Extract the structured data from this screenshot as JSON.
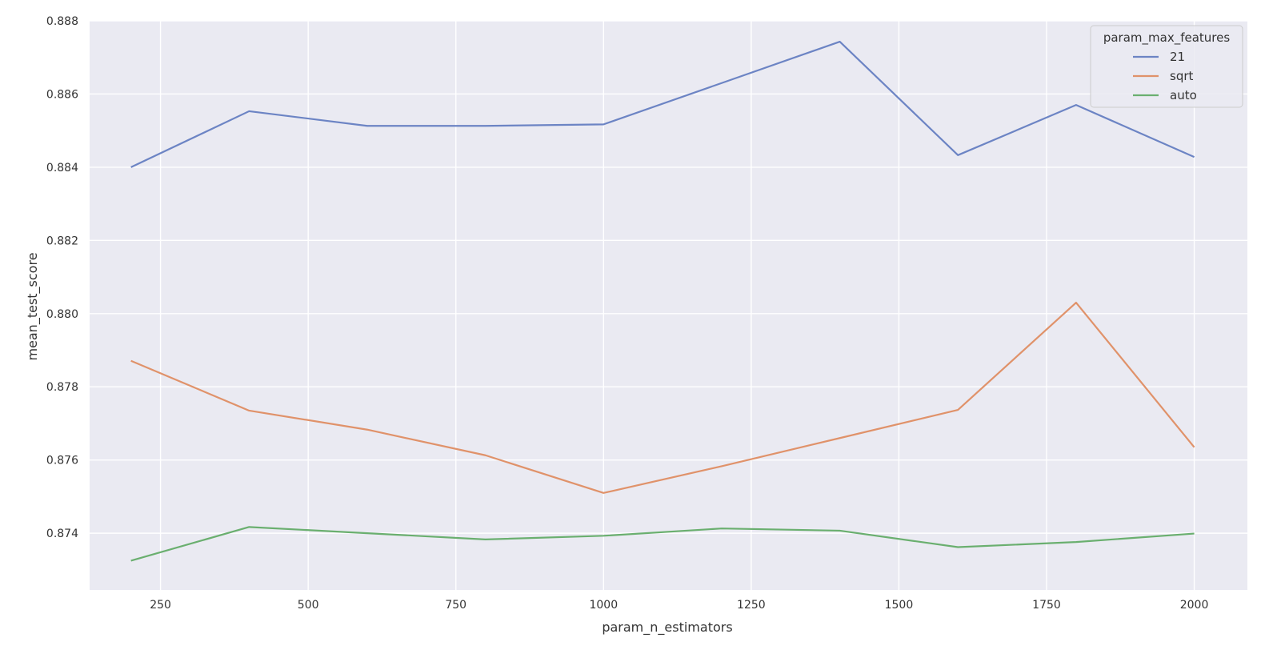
{
  "chart_data": {
    "type": "line",
    "title": "",
    "xlabel": "param_n_estimators",
    "ylabel": "mean_test_score",
    "xlim": [
      130,
      2090
    ],
    "ylim": [
      0.87245,
      0.888
    ],
    "grid": true,
    "legend_placement": "top-right",
    "legend_title": "param_max_features",
    "x": [
      200,
      400,
      600,
      800,
      1000,
      1200,
      1400,
      1600,
      1800,
      2000
    ],
    "x_ticks": [
      250,
      500,
      750,
      1000,
      1250,
      1500,
      1750,
      2000
    ],
    "x_tick_labels": [
      "250",
      "500",
      "750",
      "1000",
      "1250",
      "1500",
      "1750",
      "2000"
    ],
    "y_ticks": [
      0.874,
      0.876,
      0.878,
      0.88,
      0.882,
      0.884,
      0.886,
      0.888
    ],
    "y_tick_labels": [
      "0.874",
      "0.876",
      "0.878",
      "0.880",
      "0.882",
      "0.884",
      "0.886",
      "0.888"
    ],
    "series": [
      {
        "name": "21",
        "color": "#6c84c4",
        "values": [
          0.884,
          0.88553,
          0.88513,
          0.88513,
          0.88517,
          0.8863,
          0.88743,
          0.88433,
          0.8857,
          0.88428
        ]
      },
      {
        "name": "sqrt",
        "color": "#e0926a",
        "values": [
          0.87871,
          0.87735,
          0.87683,
          0.87613,
          0.8751,
          0.87583,
          0.8766,
          0.87737,
          0.8803,
          0.87635
        ]
      },
      {
        "name": "auto",
        "color": "#6aaf6f",
        "values": [
          0.87325,
          0.87417,
          0.874,
          0.87383,
          0.87393,
          0.87413,
          0.87407,
          0.87362,
          0.87376,
          0.87399
        ]
      }
    ],
    "background": "#eaeaf2",
    "grid_color": "#ffffff"
  }
}
